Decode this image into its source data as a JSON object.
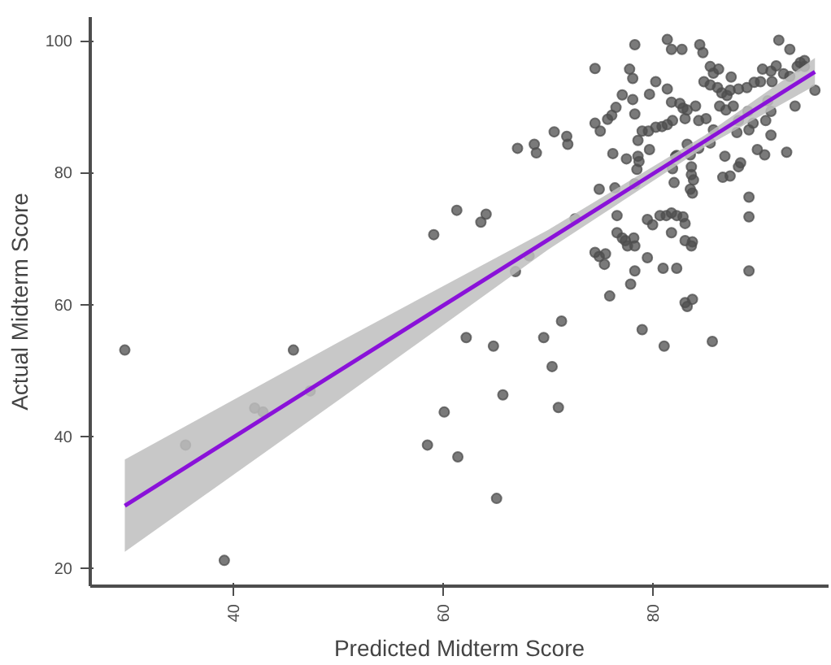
{
  "chart_data": {
    "type": "scatter",
    "xlabel": "Predicted Midterm Score",
    "ylabel": "Actual Midterm Score",
    "xlim": [
      26.3,
      96.8
    ],
    "ylim": [
      17.3,
      103.6
    ],
    "xticks": [
      40,
      60,
      80
    ],
    "yticks": [
      20,
      40,
      60,
      80,
      100
    ],
    "grid": false,
    "series": [
      {
        "marker": "circle",
        "color": "#4d4d4d",
        "x": [
          29.6,
          35.4,
          39.1,
          42.0,
          42.8,
          45.7,
          47.3,
          59.1,
          61.3,
          63.6,
          64.1,
          67.1,
          68.7,
          68.9,
          70.6,
          71.8,
          71.9,
          72.6,
          68.2,
          66.9,
          62.2,
          64.8,
          69.6,
          71.3,
          70.4,
          65.7,
          71.0,
          60.1,
          58.5,
          61.4,
          65.1,
          79.0,
          81.1,
          85.7,
          78.3,
          81.4,
          81.8,
          82.8,
          84.5,
          84.8,
          92.05,
          93.1,
          94.1,
          94.5,
          74.5,
          77.8,
          78.1,
          80.3,
          79.7,
          77.1,
          78.1,
          76.5,
          76.1,
          75.7,
          74.5,
          75.0,
          78.3,
          79.0,
          79.6,
          80.3,
          80.9,
          81.4,
          81.9,
          81.4,
          81.8,
          82.6,
          82.9,
          83.3,
          84.1,
          84.4,
          85.1,
          83.1,
          84.9,
          85.5,
          85.8,
          86.3,
          85.5,
          86.2,
          86.6,
          87.1,
          87.5,
          87.4,
          88.2,
          89.0,
          89.7,
          90.3,
          90.5,
          91.3,
          91.4,
          91.8,
          92.5,
          93.1,
          93.8,
          94.5,
          95.5,
          93.6,
          92.8,
          91.3,
          90.8,
          89.6,
          89.2,
          89.1,
          88.2,
          88.05,
          91.3,
          91.0,
          87.7,
          87.0,
          86.4,
          85.8,
          85.5,
          86.9,
          84.4,
          83.3,
          83.6,
          82.3,
          83.7,
          83.7,
          83.9,
          83.6,
          83.8,
          82.2,
          82.05,
          81.9,
          88.4,
          87.4,
          86.7,
          88.2,
          90.0,
          90.7,
          89.2,
          89.2,
          89.2,
          78.6,
          78.6,
          77.5,
          76.2,
          78.7,
          78.5,
          79.7,
          74.9,
          76.4,
          78.3,
          76.6,
          79.5,
          80.0,
          80.7,
          81.3,
          81.8,
          82.3,
          82.9,
          83.1,
          81.8,
          83.1,
          83.8,
          83.7,
          76.6,
          77.1,
          77.4,
          78.2,
          78.3,
          77.6,
          74.5,
          74.9,
          75.5,
          75.4,
          79.5,
          81.0,
          82.3,
          78.3,
          77.9,
          75.9,
          83.1,
          83.8,
          83.3
        ],
        "values": [
          53.1,
          38.7,
          21.2,
          44.3,
          43.7,
          53.1,
          46.9,
          70.6,
          74.3,
          72.5,
          73.7,
          83.7,
          84.3,
          83.0,
          86.2,
          85.5,
          84.3,
          73.0,
          67.4,
          65.0,
          55.0,
          53.7,
          55.0,
          57.5,
          50.6,
          46.3,
          44.4,
          43.7,
          38.7,
          36.9,
          30.6,
          56.2,
          53.7,
          54.4,
          99.4,
          100.2,
          98.7,
          98.7,
          99.4,
          98.2,
          100.1,
          98.7,
          96.7,
          97.0,
          95.8,
          95.7,
          94.3,
          93.8,
          91.9,
          91.8,
          91.1,
          89.9,
          88.7,
          88.1,
          87.5,
          86.3,
          88.9,
          86.3,
          86.3,
          86.9,
          87.0,
          87.3,
          87.9,
          92.7,
          90.7,
          90.5,
          89.8,
          89.5,
          90.1,
          87.9,
          88.2,
          88.2,
          93.8,
          96.1,
          95.1,
          95.7,
          93.3,
          92.9,
          92.1,
          91.7,
          94.5,
          92.5,
          92.7,
          92.9,
          93.7,
          93.8,
          95.7,
          95.4,
          93.8,
          96.2,
          95.0,
          94.6,
          96.1,
          96.1,
          92.5,
          90.1,
          83.1,
          89.3,
          87.9,
          87.5,
          86.5,
          89.3,
          87.9,
          86.1,
          85.7,
          90.9,
          90.1,
          89.5,
          90.1,
          86.5,
          84.5,
          82.5,
          83.7,
          84.3,
          82.7,
          82.6,
          80.9,
          79.7,
          78.9,
          77.5,
          76.9,
          82.5,
          78.5,
          80.6,
          81.5,
          79.5,
          79.3,
          80.9,
          83.5,
          82.7,
          76.3,
          73.3,
          65.1,
          84.9,
          82.5,
          82.1,
          82.9,
          81.7,
          80.5,
          83.5,
          77.5,
          77.7,
          78.3,
          73.5,
          72.9,
          72.1,
          73.5,
          73.5,
          73.9,
          73.5,
          73.3,
          72.3,
          70.9,
          69.7,
          69.5,
          68.9,
          70.9,
          70.1,
          69.7,
          70.1,
          68.9,
          68.9,
          67.9,
          67.3,
          67.7,
          66.1,
          67.1,
          65.5,
          65.5,
          65.1,
          63.1,
          61.3,
          60.3,
          60.8,
          59.7
        ]
      },
      {
        "type": "line",
        "color": "#8a12d9",
        "x": [
          29.6,
          50,
          70,
          85,
          95.5
        ],
        "values": [
          29.5,
          49.9,
          69.8,
          84.8,
          95.3
        ],
        "lower": [
          22.5,
          45.5,
          68.3,
          83.9,
          93.2
        ],
        "upper": [
          36.5,
          54.3,
          71.3,
          85.7,
          97.4
        ]
      }
    ]
  }
}
